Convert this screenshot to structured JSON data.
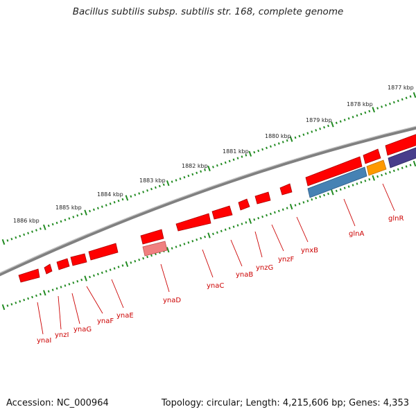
{
  "title": "Bacillus subtilis subsp. subtilis str. 168, complete genome",
  "footer": {
    "accession": "Accession: NC_000964",
    "topology": "Topology: circular; Length: 4,215,606 bp; Genes: 4,353"
  },
  "colors": {
    "backbone": "#808080",
    "tick": "#228b22",
    "gene_red": "#ff0000",
    "gene_pink": "#f08080",
    "gene_blue": "#4682b4",
    "gene_orange": "#ff9900",
    "gene_purple": "#483d8b",
    "label": "#cc0000"
  },
  "ruler": {
    "labels": [
      "1886 kbp",
      "1885 kbp",
      "1884 kbp",
      "1883 kbp",
      "1882 kbp",
      "1881 kbp",
      "1880 kbp",
      "1879 kbp",
      "1878 kbp",
      "1877 kbp"
    ]
  },
  "genes": [
    {
      "label": "ynaI",
      "color": "gene_red"
    },
    {
      "label": "ynzI",
      "color": "gene_red"
    },
    {
      "label": "ynaG",
      "color": "gene_red"
    },
    {
      "label": "ynaF",
      "color": "gene_red"
    },
    {
      "label": "ynaE",
      "color": "gene_red"
    },
    {
      "label": "ynaD",
      "color": "gene_red"
    },
    {
      "label": "ynaC",
      "color": "gene_red"
    },
    {
      "label": "ynaB",
      "color": "gene_red"
    },
    {
      "label": "ynzG",
      "color": "gene_red"
    },
    {
      "label": "ynzF",
      "color": "gene_red"
    },
    {
      "label": "ynxB",
      "color": "gene_red"
    },
    {
      "label": "glnA",
      "color": "gene_red"
    },
    {
      "label": "glnR",
      "color": "gene_red"
    }
  ]
}
